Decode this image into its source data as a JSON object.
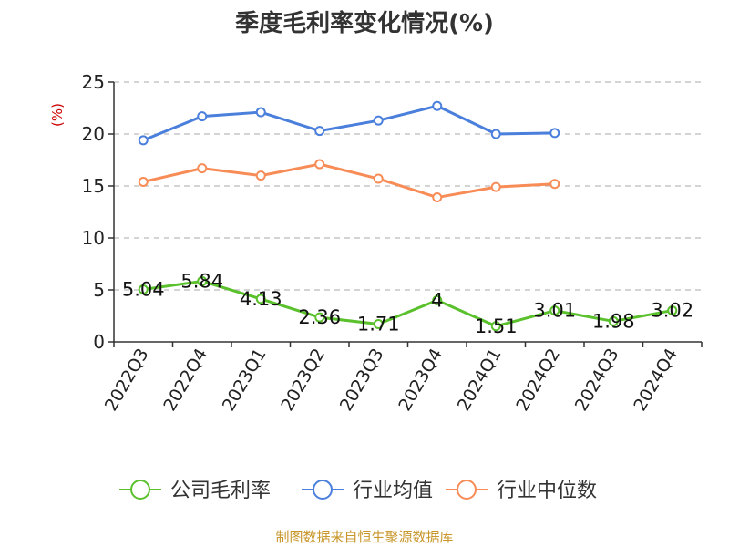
{
  "chart_data": {
    "type": "line",
    "title": "季度毛利率变化情况(%)",
    "ylabel": "(%)",
    "xlabel": "",
    "ylim": [
      0,
      25
    ],
    "yticks": [
      0,
      5,
      10,
      15,
      20,
      25
    ],
    "grid": true,
    "legend_position": "bottom",
    "categories": [
      "2022Q3",
      "2022Q4",
      "2023Q1",
      "2023Q2",
      "2023Q3",
      "2023Q4",
      "2024Q1",
      "2024Q2",
      "2024Q3",
      "2024Q4"
    ],
    "series": [
      {
        "name": "公司毛利率",
        "color": "#5ac12d",
        "values": [
          5.04,
          5.84,
          4.13,
          2.36,
          1.71,
          4,
          1.51,
          3.01,
          1.98,
          3.02
        ],
        "labels": [
          "5.04",
          "5.84",
          "4.13",
          "2.36",
          "1.71",
          "4",
          "1.51",
          "3.01",
          "1.98",
          "3.02"
        ],
        "show_labels": true
      },
      {
        "name": "行业均值",
        "color": "#4a7fdc",
        "values": [
          19.4,
          21.7,
          22.1,
          20.3,
          21.3,
          22.7,
          20.0,
          20.1,
          null,
          null
        ],
        "show_labels": false
      },
      {
        "name": "行业中位数",
        "color": "#f78c57",
        "values": [
          15.4,
          16.7,
          16.0,
          17.1,
          15.7,
          13.9,
          14.9,
          15.2,
          null,
          null
        ],
        "show_labels": false
      }
    ],
    "source": "制图数据来自恒生聚源数据库",
    "colors": {
      "axis": "#333333",
      "grid": "#bbbbbb",
      "unit": "#cc0000",
      "source": "#c8962a"
    }
  }
}
